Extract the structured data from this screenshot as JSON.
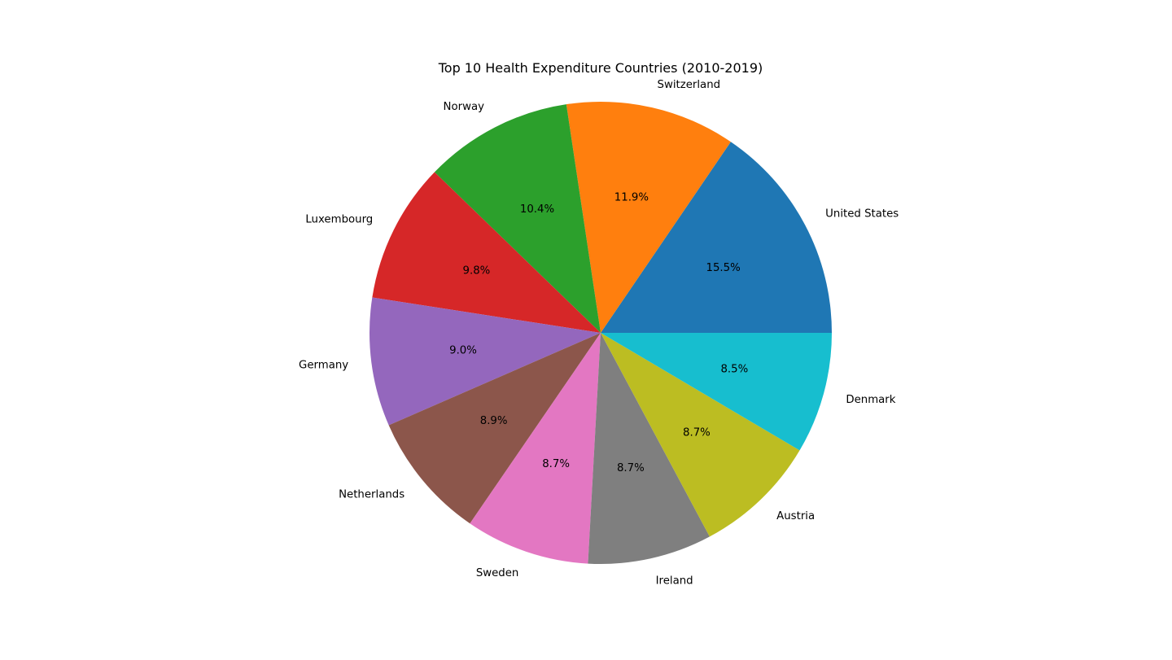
{
  "chart_data": {
    "type": "pie",
    "title": "Top 10 Health Expenditure Countries (2010-2019)",
    "categories": [
      "United States",
      "Switzerland",
      "Norway",
      "Luxembourg",
      "Germany",
      "Netherlands",
      "Sweden",
      "Ireland",
      "Austria",
      "Denmark"
    ],
    "values": [
      15.5,
      11.9,
      10.4,
      9.8,
      9.0,
      8.9,
      8.7,
      8.7,
      8.7,
      8.5
    ],
    "value_labels": [
      "15.5%",
      "11.9%",
      "10.4%",
      "9.8%",
      "9.0%",
      "8.9%",
      "8.7%",
      "8.7%",
      "8.7%",
      "8.5%"
    ],
    "colors": [
      "#1f77b4",
      "#ff7f0e",
      "#2ca02c",
      "#d62728",
      "#9467bd",
      "#8c564b",
      "#e377c2",
      "#7f7f7f",
      "#bcbd22",
      "#17becf"
    ],
    "start_angle_deg": 0,
    "direction": "counterclockwise"
  }
}
